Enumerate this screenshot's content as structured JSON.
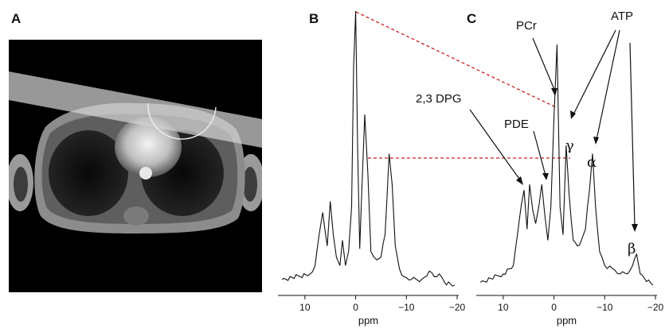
{
  "panels": {
    "a": "A",
    "b": "B",
    "c": "C"
  },
  "image_a": {
    "icon": "axial-chest-mri-image"
  },
  "colors": {
    "spectrum_line": "#111111",
    "guide_dashes": "#cc2222",
    "mri_background": "#000000"
  },
  "annotations": {
    "pcr": "PCr",
    "atp": "ATP",
    "dpg": "2,3 DPG",
    "pde": "PDE",
    "gamma": "γ",
    "alpha": "α",
    "beta": "β"
  },
  "chart_data": [
    {
      "type": "line",
      "panel": "B",
      "xlabel": "ppm",
      "x_ticks": [
        "10",
        "0",
        "−10",
        "−20"
      ],
      "x_tick_values": [
        10,
        0,
        -10,
        -20
      ],
      "xlim": [
        15,
        -20
      ],
      "x_reversed": true,
      "y_axis_shown": false,
      "series": [
        {
          "x": [
            14.5,
            9,
            8,
            7.2,
            6.5,
            5.6,
            5,
            4.4,
            3.8,
            3.1,
            2.6,
            2.0,
            1.4,
            0.8,
            0.4,
            0,
            -0.4,
            -0.8,
            -1.2,
            -1.8,
            -2.4,
            -3.0,
            -3.6,
            -4.2,
            -5.0,
            -5.8,
            -6.6,
            -7.2,
            -7.8,
            -8.6,
            -9.5,
            -11,
            -13,
            -14.5,
            -15.5,
            -16.5,
            -17.5,
            -19.5
          ],
          "y": [
            0.04,
            0.06,
            0.09,
            0.2,
            0.28,
            0.16,
            0.32,
            0.2,
            0.12,
            0.09,
            0.18,
            0.09,
            0.14,
            0.3,
            0.8,
            1.0,
            0.5,
            0.15,
            0.35,
            0.63,
            0.42,
            0.14,
            0.12,
            0.11,
            0.12,
            0.2,
            0.49,
            0.38,
            0.16,
            0.08,
            0.05,
            0.04,
            0.04,
            0.07,
            0.05,
            0.06,
            0.03,
            0.02
          ]
        }
      ]
    },
    {
      "type": "line",
      "panel": "C",
      "xlabel": "ppm",
      "x_ticks": [
        "10",
        "0",
        "−10",
        "−20"
      ],
      "x_tick_values": [
        10,
        0,
        -10,
        -20
      ],
      "xlim": [
        15,
        -20
      ],
      "x_reversed": true,
      "y_axis_shown": false,
      "series": [
        {
          "x": [
            14.5,
            10,
            8,
            7.2,
            6.5,
            5.9,
            5.3,
            4.8,
            4.2,
            3.6,
            3.0,
            2.4,
            1.8,
            1.2,
            0.6,
            0,
            -0.6,
            -1.2,
            -1.8,
            -2.4,
            -3.0,
            -3.8,
            -4.6,
            -5.4,
            -6.2,
            -7.0,
            -7.6,
            -8.2,
            -9.0,
            -10,
            -11.5,
            -13,
            -14.5,
            -15.5,
            -16.3,
            -17,
            -19.5
          ],
          "y": [
            0.03,
            0.06,
            0.09,
            0.2,
            0.3,
            0.36,
            0.22,
            0.38,
            0.29,
            0.24,
            0.3,
            0.38,
            0.27,
            0.18,
            0.3,
            0.62,
            0.88,
            0.3,
            0.2,
            0.52,
            0.34,
            0.18,
            0.16,
            0.18,
            0.22,
            0.36,
            0.49,
            0.3,
            0.14,
            0.09,
            0.08,
            0.06,
            0.06,
            0.09,
            0.13,
            0.06,
            0.02
          ]
        }
      ]
    }
  ]
}
